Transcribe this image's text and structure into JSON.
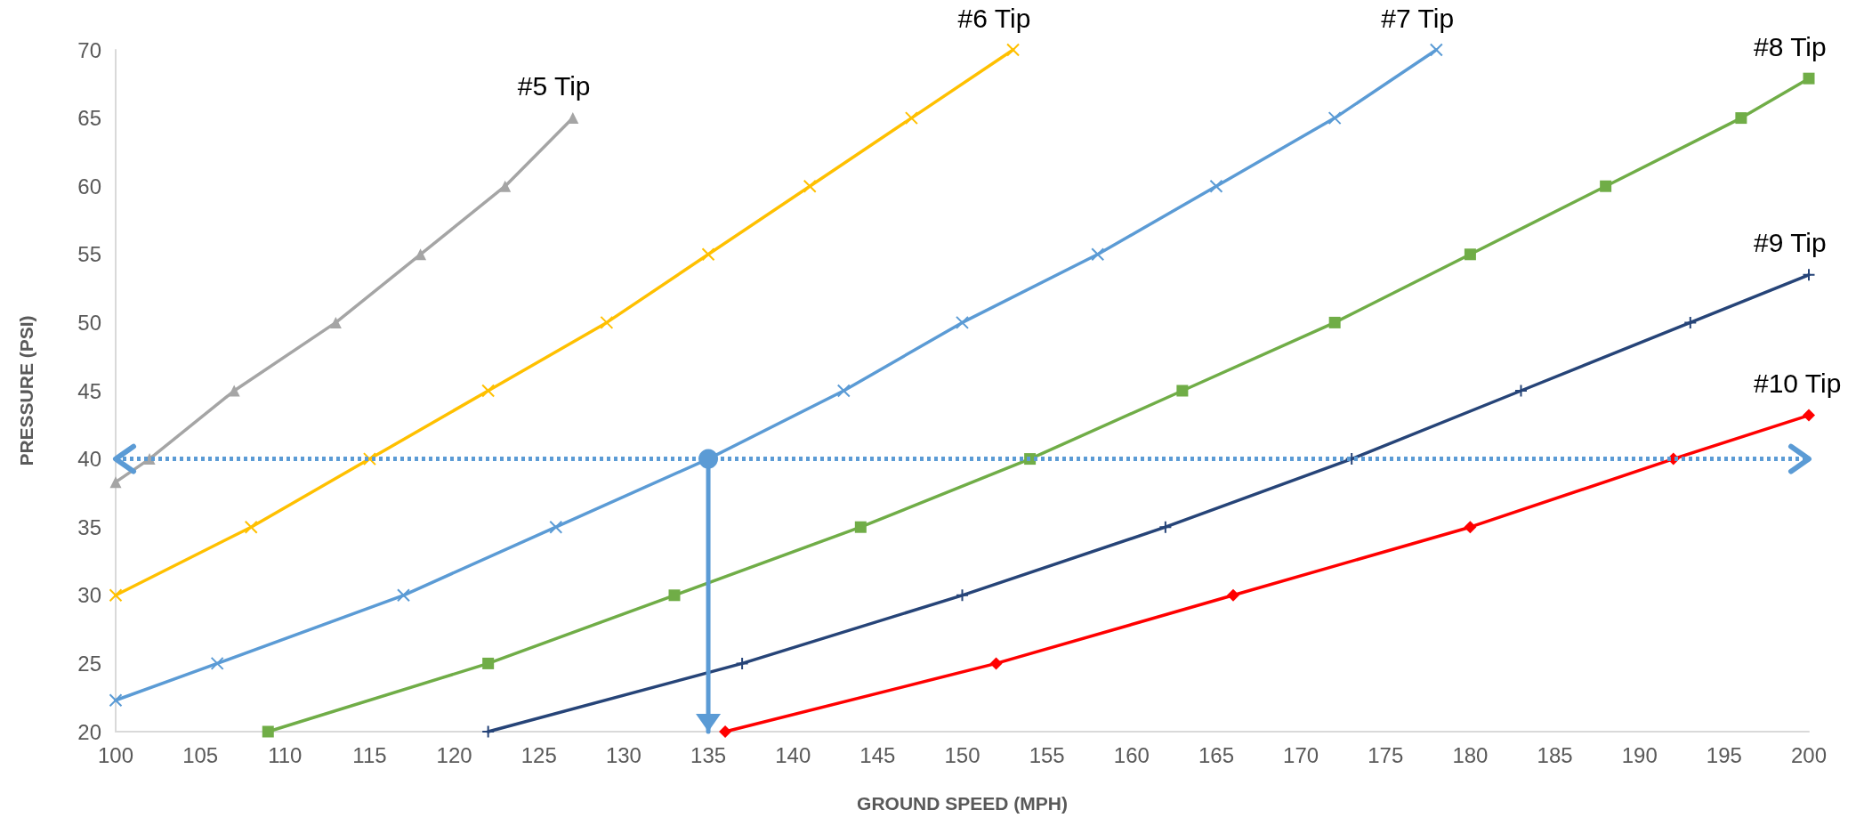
{
  "chart_data": {
    "type": "line",
    "xlabel": "GROUND SPEED (MPH)",
    "ylabel": "PRESSURE (PSI)",
    "xlim": [
      100,
      200
    ],
    "xticks": [
      100,
      105,
      110,
      115,
      120,
      125,
      130,
      135,
      140,
      145,
      150,
      155,
      160,
      165,
      170,
      175,
      180,
      185,
      190,
      195,
      200
    ],
    "ylim": [
      20,
      70
    ],
    "yticks": [
      20,
      25,
      30,
      35,
      40,
      45,
      50,
      55,
      60,
      65,
      70
    ],
    "grid": false,
    "legend": false,
    "ref_lines": [
      {
        "axis": "y",
        "value": 40,
        "color": "#5b9bd5",
        "line_style": "dotted"
      }
    ],
    "series": [
      {
        "name": "#5 Tip",
        "color": "#a5a5a5",
        "marker": "triangle",
        "x": [
          100,
          102,
          107,
          113,
          118,
          123,
          127
        ],
        "values": [
          38.3,
          40,
          45,
          50,
          55,
          60,
          65
        ]
      },
      {
        "name": "#6 Tip",
        "color": "#ffc000",
        "marker": "cross",
        "x": [
          100,
          108,
          115,
          122,
          129,
          135,
          141,
          147,
          153
        ],
        "values": [
          30,
          35,
          40,
          45,
          50,
          55,
          60,
          65,
          70
        ]
      },
      {
        "name": "#7 Tip",
        "color": "#5b9bd5",
        "marker": "cross",
        "x": [
          100,
          106,
          117,
          126,
          135,
          143,
          150,
          158,
          165,
          172,
          178
        ],
        "values": [
          22.3,
          25,
          30,
          35,
          40,
          45,
          50,
          55,
          60,
          65,
          70
        ]
      },
      {
        "name": "#8 Tip",
        "color": "#70ad47",
        "marker": "square",
        "x": [
          109,
          122,
          133,
          144,
          154,
          163,
          172,
          180,
          188,
          196,
          200
        ],
        "values": [
          20,
          25,
          30,
          35,
          40,
          45,
          50,
          55,
          60,
          65,
          67.9
        ]
      },
      {
        "name": "#9 Tip",
        "color": "#264478",
        "marker": "plus",
        "x": [
          122,
          137,
          150,
          162,
          173,
          183,
          193,
          200
        ],
        "values": [
          20,
          25,
          30,
          35,
          40,
          45,
          50,
          53.5
        ]
      },
      {
        "name": "#10 Tip",
        "color": "#ff0000",
        "marker": "diamond",
        "x": [
          136,
          152,
          166,
          180,
          192,
          200
        ],
        "values": [
          20,
          25,
          30,
          35,
          40,
          43.2
        ]
      },
      {
        "color": "#5b9bd5",
        "x": [
          135,
          135
        ],
        "values": [
          40,
          20
        ]
      }
    ]
  }
}
